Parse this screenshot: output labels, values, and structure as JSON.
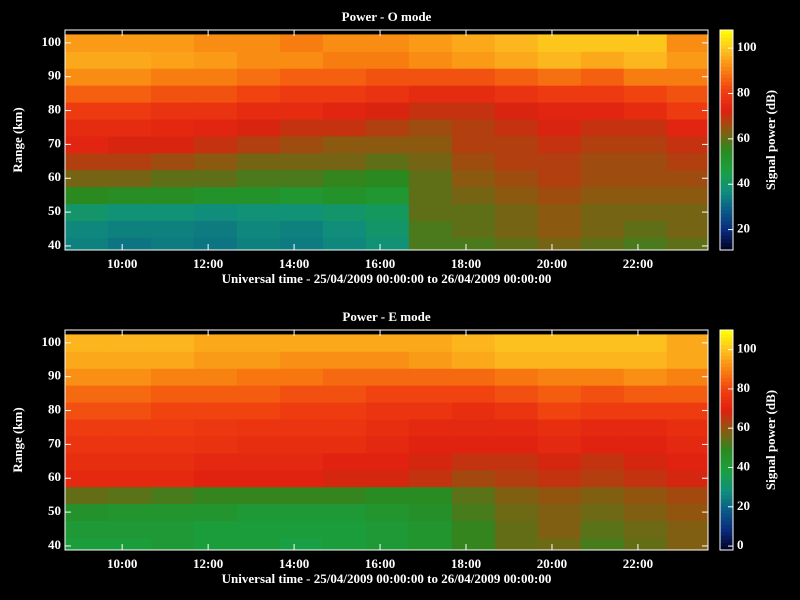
{
  "chart_data": [
    {
      "type": "heatmap",
      "title": "Power - O mode",
      "xlabel": "Universal time - 25/04/2009 00:00:00 to 26/04/2009 00:00:00",
      "ylabel": "Range (km)",
      "colorbar_label": "Signal power (dB)",
      "x": [
        9.17,
        10.17,
        11.17,
        12.17,
        13.17,
        14.17,
        15.17,
        16.17,
        17.17,
        18.17,
        19.17,
        20.17,
        21.17,
        22.17,
        23.17
      ],
      "y": [
        40,
        45,
        50,
        55,
        60,
        65,
        70,
        75,
        80,
        85,
        90,
        95,
        100
      ],
      "z": [
        [
          35,
          33,
          34,
          33,
          35,
          34,
          36,
          38,
          58,
          58,
          60,
          62,
          60,
          58,
          60
        ],
        [
          36,
          35,
          35,
          34,
          36,
          35,
          37,
          40,
          58,
          60,
          62,
          64,
          62,
          60,
          62
        ],
        [
          40,
          38,
          38,
          37,
          38,
          38,
          40,
          42,
          60,
          60,
          62,
          64,
          62,
          62,
          62
        ],
        [
          55,
          54,
          54,
          52,
          52,
          50,
          52,
          50,
          60,
          62,
          64,
          66,
          64,
          64,
          64
        ],
        [
          62,
          62,
          60,
          60,
          58,
          58,
          56,
          55,
          60,
          64,
          66,
          68,
          66,
          66,
          66
        ],
        [
          68,
          68,
          66,
          64,
          62,
          62,
          62,
          60,
          62,
          66,
          68,
          68,
          66,
          66,
          68
        ],
        [
          74,
          72,
          72,
          70,
          68,
          66,
          64,
          64,
          64,
          68,
          68,
          70,
          68,
          68,
          70
        ],
        [
          76,
          76,
          75,
          74,
          72,
          70,
          70,
          68,
          66,
          68,
          70,
          72,
          70,
          70,
          74
        ],
        [
          80,
          80,
          78,
          78,
          76,
          76,
          74,
          72,
          70,
          70,
          72,
          74,
          74,
          76,
          80
        ],
        [
          86,
          86,
          84,
          84,
          82,
          80,
          80,
          78,
          76,
          76,
          78,
          80,
          80,
          82,
          84
        ],
        [
          92,
          92,
          90,
          90,
          88,
          86,
          86,
          84,
          84,
          84,
          86,
          88,
          86,
          90,
          90
        ],
        [
          96,
          96,
          95,
          94,
          92,
          92,
          90,
          90,
          92,
          94,
          96,
          98,
          96,
          98,
          94
        ],
        [
          94,
          94,
          94,
          92,
          92,
          90,
          92,
          92,
          94,
          96,
          98,
          100,
          100,
          100,
          92
        ]
      ],
      "xlim": [
        8.67,
        23.63
      ],
      "xticks": [
        {
          "value": 10,
          "label": "10:00"
        },
        {
          "value": 12,
          "label": "12:00"
        },
        {
          "value": 14,
          "label": "14:00"
        },
        {
          "value": 16,
          "label": "16:00"
        },
        {
          "value": 18,
          "label": "18:00"
        },
        {
          "value": 20,
          "label": "20:00"
        },
        {
          "value": 22,
          "label": "22:00"
        }
      ],
      "ylim": [
        38.8,
        103.8
      ],
      "yticks": [
        40,
        50,
        60,
        70,
        80,
        90,
        100
      ],
      "zlim": [
        11,
        108
      ],
      "zticks": [
        20,
        40,
        60,
        80,
        100
      ],
      "colorscale": [
        "#000020",
        "#0a2a7a",
        "#0a5a8a",
        "#10907a",
        "#1aa040",
        "#2a8a20",
        "#8a5a10",
        "#e02010",
        "#f04010",
        "#f88010",
        "#fdc020",
        "#ffff00"
      ]
    },
    {
      "type": "heatmap",
      "title": "Power - E mode",
      "xlabel": "Universal time - 25/04/2009 00:00:00 to 26/04/2009 00:00:00",
      "ylabel": "Range (km)",
      "colorbar_label": "Signal power (dB)",
      "x": [
        9.17,
        10.17,
        11.17,
        12.17,
        13.17,
        14.17,
        15.17,
        16.17,
        17.17,
        18.17,
        19.17,
        20.17,
        21.17,
        22.17,
        23.17
      ],
      "y": [
        40,
        45,
        50,
        55,
        60,
        65,
        70,
        75,
        80,
        85,
        90,
        95,
        100
      ],
      "z": [
        [
          40,
          40,
          42,
          40,
          40,
          38,
          40,
          42,
          44,
          50,
          55,
          56,
          52,
          55,
          58
        ],
        [
          42,
          42,
          42,
          40,
          40,
          40,
          40,
          42,
          44,
          50,
          55,
          58,
          54,
          56,
          58
        ],
        [
          45,
          44,
          44,
          44,
          42,
          42,
          42,
          44,
          46,
          52,
          56,
          58,
          56,
          58,
          60
        ],
        [
          55,
          54,
          52,
          50,
          50,
          50,
          50,
          48,
          48,
          54,
          58,
          60,
          58,
          60,
          62
        ],
        [
          72,
          72,
          72,
          70,
          70,
          70,
          68,
          68,
          66,
          62,
          64,
          66,
          64,
          66,
          68
        ],
        [
          74,
          74,
          74,
          72,
          72,
          72,
          70,
          70,
          68,
          66,
          66,
          68,
          66,
          68,
          70
        ],
        [
          76,
          76,
          76,
          75,
          74,
          74,
          74,
          72,
          70,
          70,
          70,
          72,
          70,
          70,
          72
        ],
        [
          78,
          78,
          78,
          77,
          76,
          76,
          76,
          74,
          72,
          72,
          72,
          74,
          72,
          72,
          74
        ],
        [
          82,
          82,
          80,
          80,
          80,
          78,
          78,
          76,
          76,
          74,
          76,
          80,
          78,
          78,
          78
        ],
        [
          86,
          86,
          84,
          84,
          84,
          82,
          82,
          80,
          80,
          80,
          82,
          84,
          82,
          84,
          84
        ],
        [
          92,
          92,
          90,
          90,
          88,
          88,
          86,
          86,
          86,
          86,
          88,
          90,
          90,
          92,
          90
        ],
        [
          96,
          96,
          96,
          94,
          94,
          92,
          92,
          92,
          94,
          96,
          98,
          98,
          98,
          98,
          96
        ],
        [
          98,
          98,
          98,
          96,
          96,
          96,
          96,
          96,
          96,
          98,
          100,
          100,
          100,
          100,
          96
        ]
      ],
      "xlim": [
        8.67,
        23.63
      ],
      "xticks": [
        {
          "value": 10,
          "label": "10:00"
        },
        {
          "value": 12,
          "label": "12:00"
        },
        {
          "value": 14,
          "label": "14:00"
        },
        {
          "value": 16,
          "label": "16:00"
        },
        {
          "value": 18,
          "label": "18:00"
        },
        {
          "value": 20,
          "label": "20:00"
        },
        {
          "value": 22,
          "label": "22:00"
        }
      ],
      "ylim": [
        38.8,
        103.8
      ],
      "yticks": [
        40,
        50,
        60,
        70,
        80,
        90,
        100
      ],
      "zlim": [
        -2,
        110
      ],
      "zticks": [
        0,
        20,
        40,
        60,
        80,
        100
      ],
      "colorscale": [
        "#000020",
        "#0a2a7a",
        "#0a5a8a",
        "#10907a",
        "#1aa040",
        "#2a8a20",
        "#8a5a10",
        "#e02010",
        "#f04010",
        "#f88010",
        "#fdc020",
        "#ffff00"
      ]
    }
  ]
}
